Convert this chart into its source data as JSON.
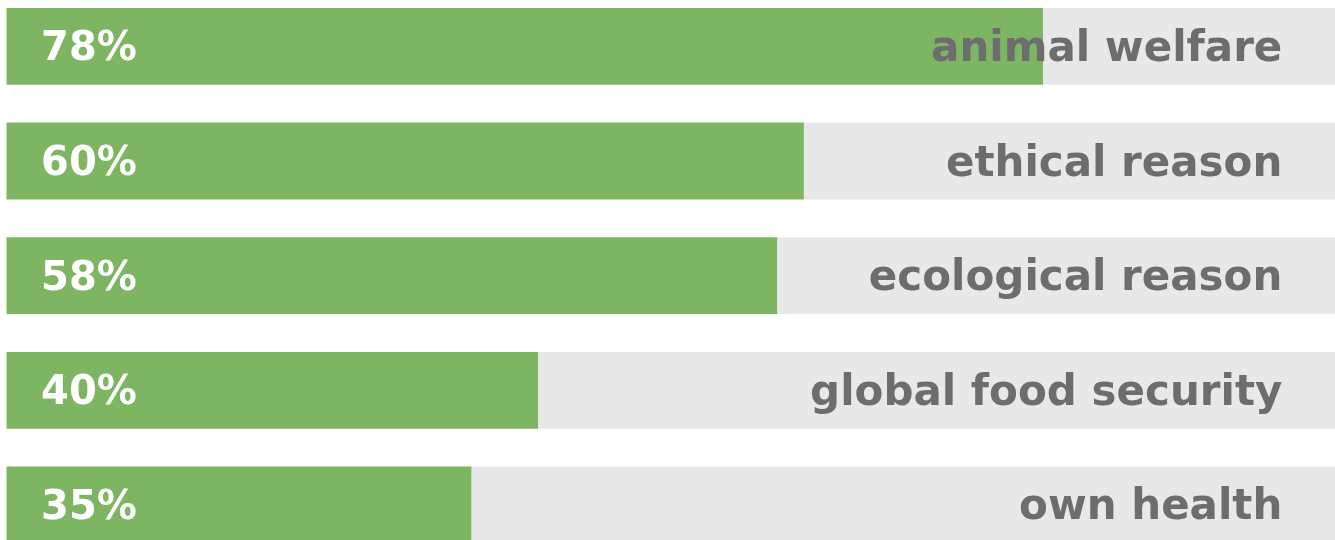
{
  "chart_data": {
    "type": "bar",
    "orientation": "horizontal",
    "stacked": true,
    "tick_labels": false,
    "grid": false,
    "categories": [
      "animal welfare",
      "ethical reason",
      "ecological reason",
      "global food security",
      "own health"
    ],
    "xlim": [
      0,
      100
    ],
    "series": [
      {
        "color": "#7db562",
        "values": [
          78,
          60,
          58,
          40,
          35
        ],
        "value_labels": [
          "78%",
          "60%",
          "58%",
          "40%",
          "35%"
        ]
      },
      {
        "color": "#e8e8e8",
        "values": [
          22,
          40,
          42,
          60,
          65
        ]
      }
    ]
  }
}
